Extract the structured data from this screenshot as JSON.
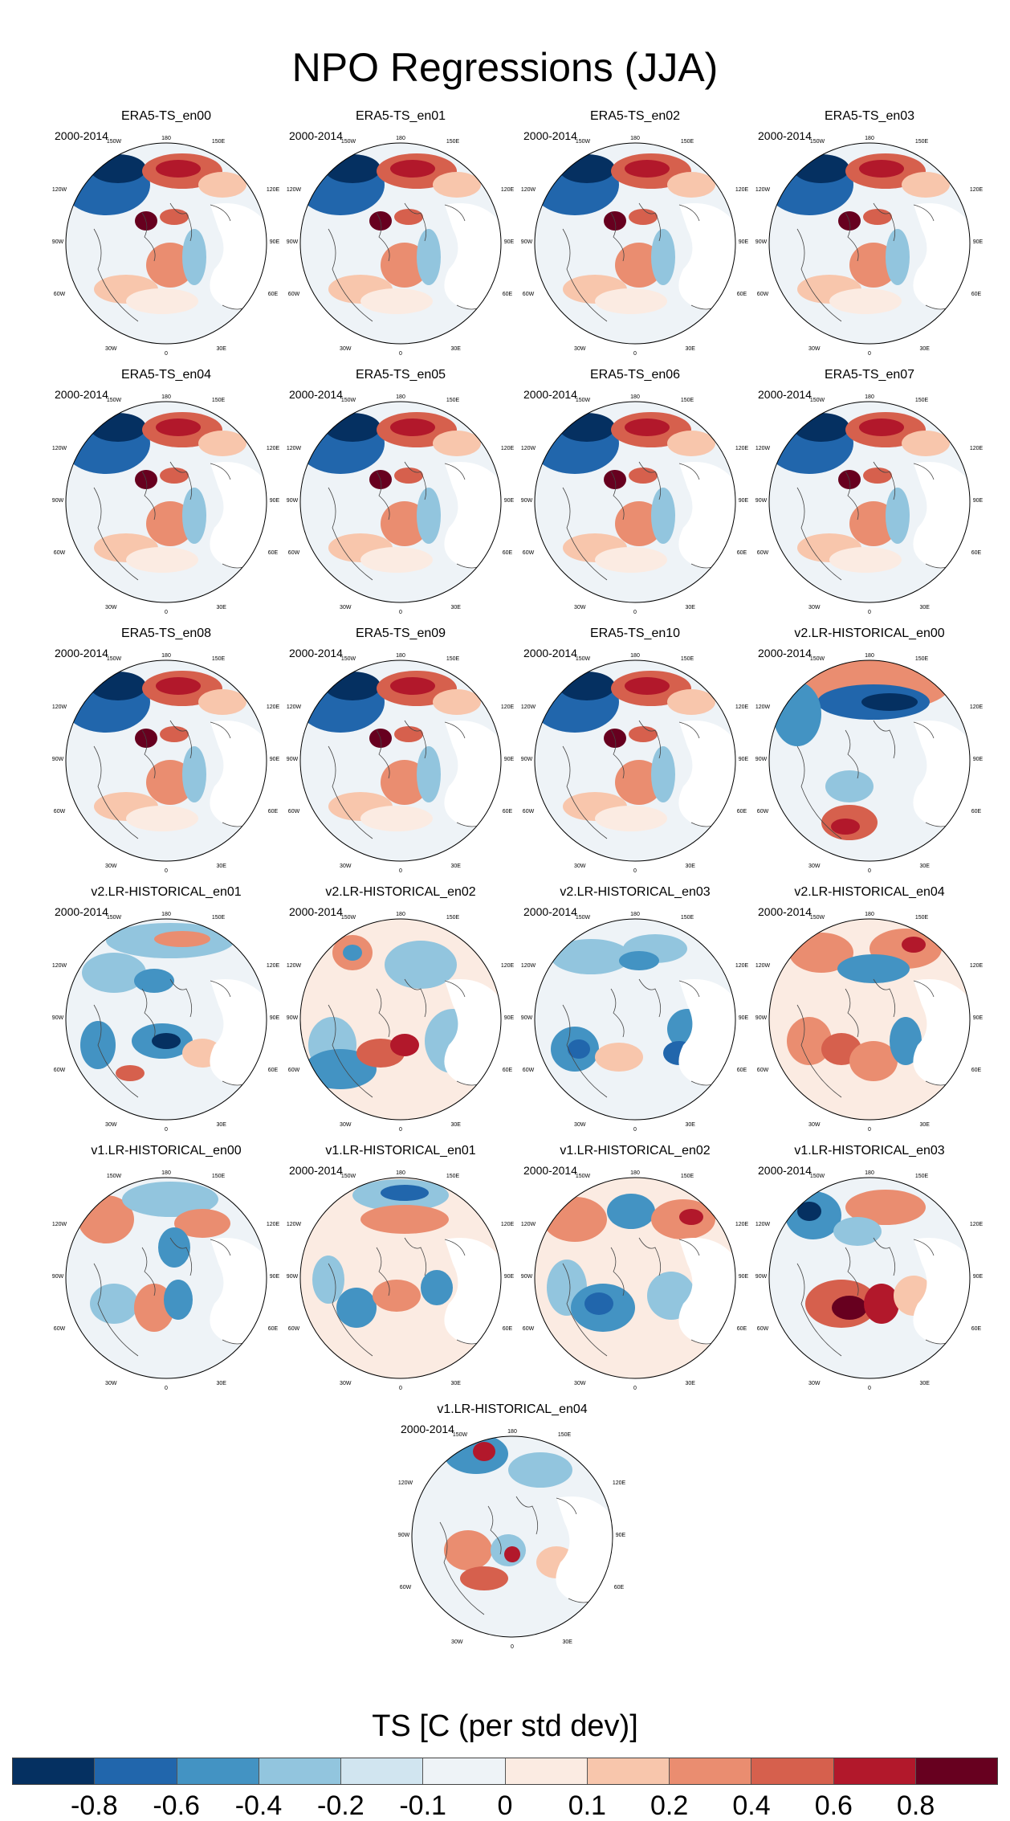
{
  "title": "NPO Regressions (JJA)",
  "period": "2000-2014",
  "panels": [
    {
      "title": "ERA5-TS_en00",
      "show_period": true,
      "style": "era5"
    },
    {
      "title": "ERA5-TS_en01",
      "show_period": true,
      "style": "era5"
    },
    {
      "title": "ERA5-TS_en02",
      "show_period": true,
      "style": "era5"
    },
    {
      "title": "ERA5-TS_en03",
      "show_period": true,
      "style": "era5"
    },
    {
      "title": "ERA5-TS_en04",
      "show_period": true,
      "style": "era5"
    },
    {
      "title": "ERA5-TS_en05",
      "show_period": true,
      "style": "era5"
    },
    {
      "title": "ERA5-TS_en06",
      "show_period": true,
      "style": "era5"
    },
    {
      "title": "ERA5-TS_en07",
      "show_period": true,
      "style": "era5"
    },
    {
      "title": "ERA5-TS_en08",
      "show_period": true,
      "style": "era5"
    },
    {
      "title": "ERA5-TS_en09",
      "show_period": true,
      "style": "era5"
    },
    {
      "title": "ERA5-TS_en10",
      "show_period": true,
      "style": "era5"
    },
    {
      "title": "v2.LR-HISTORICAL_en00",
      "show_period": true,
      "style": "v2a"
    },
    {
      "title": "v2.LR-HISTORICAL_en01",
      "show_period": true,
      "style": "v2b"
    },
    {
      "title": "v2.LR-HISTORICAL_en02",
      "show_period": true,
      "style": "v2c"
    },
    {
      "title": "v2.LR-HISTORICAL_en03",
      "show_period": true,
      "style": "v2d"
    },
    {
      "title": "v2.LR-HISTORICAL_en04",
      "show_period": true,
      "style": "v2e"
    },
    {
      "title": "v1.LR-HISTORICAL_en00",
      "show_period": false,
      "style": "v1a"
    },
    {
      "title": "v1.LR-HISTORICAL_en01",
      "show_period": true,
      "style": "v1b"
    },
    {
      "title": "v1.LR-HISTORICAL_en02",
      "show_period": true,
      "style": "v1c"
    },
    {
      "title": "v1.LR-HISTORICAL_en03",
      "show_period": true,
      "style": "v1d"
    },
    {
      "title": "v1.LR-HISTORICAL_en04",
      "show_period": true,
      "style": "v1e"
    }
  ],
  "map_labels": {
    "top": "180",
    "upper_left": "150W",
    "upper_right": "150E",
    "left_high": "120W",
    "right_high": "120E",
    "left_mid": "90W",
    "right_mid": "90E",
    "left_low": "60W",
    "right_low": "60E",
    "lower_left": "30W",
    "lower_right": "30E",
    "bottom": "0"
  },
  "colorbar": {
    "title": "TS [C (per std dev)]",
    "colors": [
      "#053061",
      "#2166ac",
      "#4393c3",
      "#92c5de",
      "#d1e5f0",
      "#eef3f7",
      "#fbebe2",
      "#f8c6ac",
      "#ea8d70",
      "#d6604d",
      "#b2182b",
      "#67001f"
    ],
    "ticks": [
      "-0.8",
      "-0.6",
      "-0.4",
      "-0.2",
      "-0.1",
      "0",
      "0.1",
      "0.2",
      "0.4",
      "0.6",
      "0.8"
    ]
  }
}
